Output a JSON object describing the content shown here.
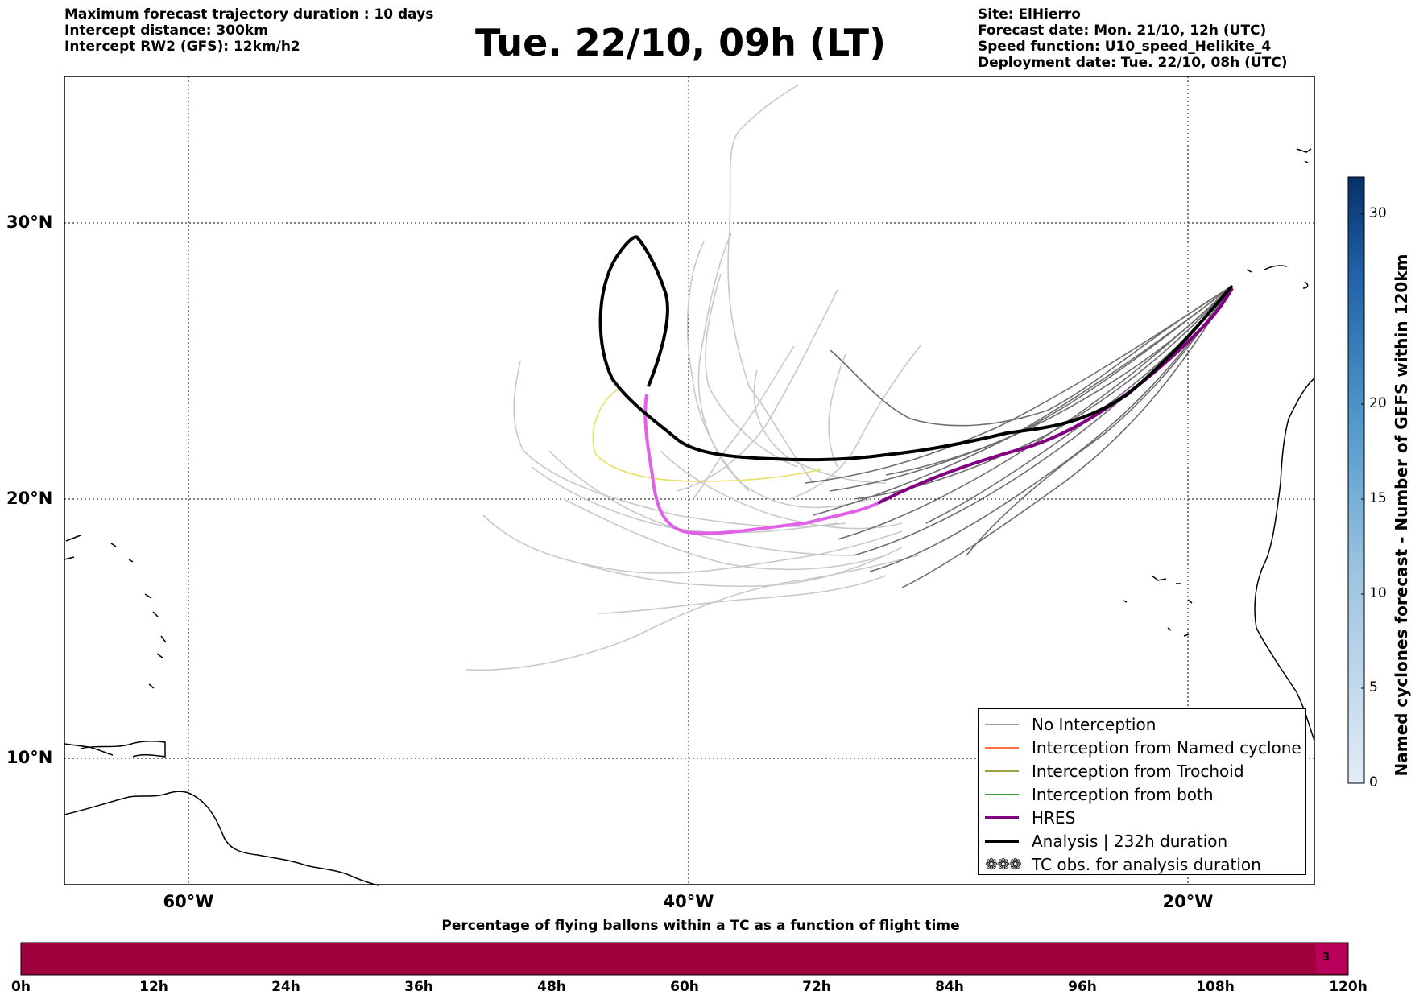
{
  "header_left": [
    "Maximum forecast trajectory duration : 10 days",
    "Intercept distance: 300km",
    "Intercept RW2 (GFS):  12km/h2"
  ],
  "title": "Tue. 22/10, 09h (LT)",
  "header_right": [
    "Site: ElHierro",
    "Forecast date: Mon. 21/10, 12h (UTC)",
    "Speed function: U10_speed_Helikite_4",
    "Deployment date: Tue. 22/10, 08h (UTC)"
  ],
  "map": {
    "lat_labels": [
      "30°N",
      "20°N",
      "10°N"
    ],
    "lon_labels": [
      "60°W",
      "40°W",
      "20°W"
    ]
  },
  "legend": {
    "items": [
      {
        "label": "No Interception",
        "color": "#808080",
        "width": 1.5
      },
      {
        "label": "Interception from Named cyclone",
        "color": "#ff4500",
        "width": 1.5
      },
      {
        "label": "Interception from Trochoid",
        "color": "#808000",
        "width": 1.5
      },
      {
        "label": "Interception from both",
        "color": "#008000",
        "width": 1.5
      },
      {
        "label": "HRES",
        "color": "#800080",
        "width": 4
      },
      {
        "label": "Analysis | 232h duration",
        "color": "#000000",
        "width": 4
      }
    ],
    "symbol_item": {
      "symbol": "❁❁❁",
      "label": "TC obs. for analysis duration"
    }
  },
  "colorbar": {
    "label": "Named cyclones forecast - Number of GEFS within 120km",
    "ticks": [
      "30",
      "20",
      "15",
      "10",
      "5",
      "0"
    ]
  },
  "flight_bar": {
    "title": "Percentage of flying ballons within a TC as a function of flight time",
    "ticks": [
      "0h",
      "12h",
      "24h",
      "36h",
      "48h",
      "60h",
      "72h",
      "84h",
      "96h",
      "108h",
      "120h"
    ],
    "end_value": "3",
    "color": "#a0003c"
  }
}
